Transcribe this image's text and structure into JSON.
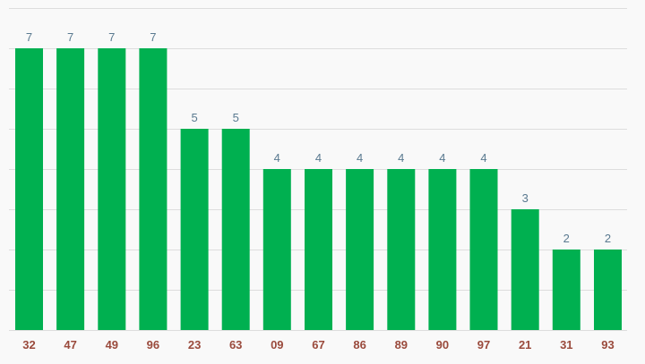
{
  "chart_data": {
    "type": "bar",
    "title": "",
    "xlabel": "",
    "ylabel": "",
    "categories": [
      "32",
      "47",
      "49",
      "96",
      "23",
      "63",
      "09",
      "67",
      "86",
      "89",
      "90",
      "97",
      "21",
      "31",
      "93"
    ],
    "values": [
      7,
      7,
      7,
      7,
      5,
      5,
      4,
      4,
      4,
      4,
      4,
      4,
      3,
      2,
      2
    ],
    "ylim": [
      0,
      8
    ],
    "grid": true,
    "data_labels": true,
    "bar_color": "#00b050",
    "value_label_color": "#5a7a90",
    "tick_label_color": "#9a4a3c",
    "grid_color": "#dddddd",
    "background": "#f9f9f9"
  }
}
